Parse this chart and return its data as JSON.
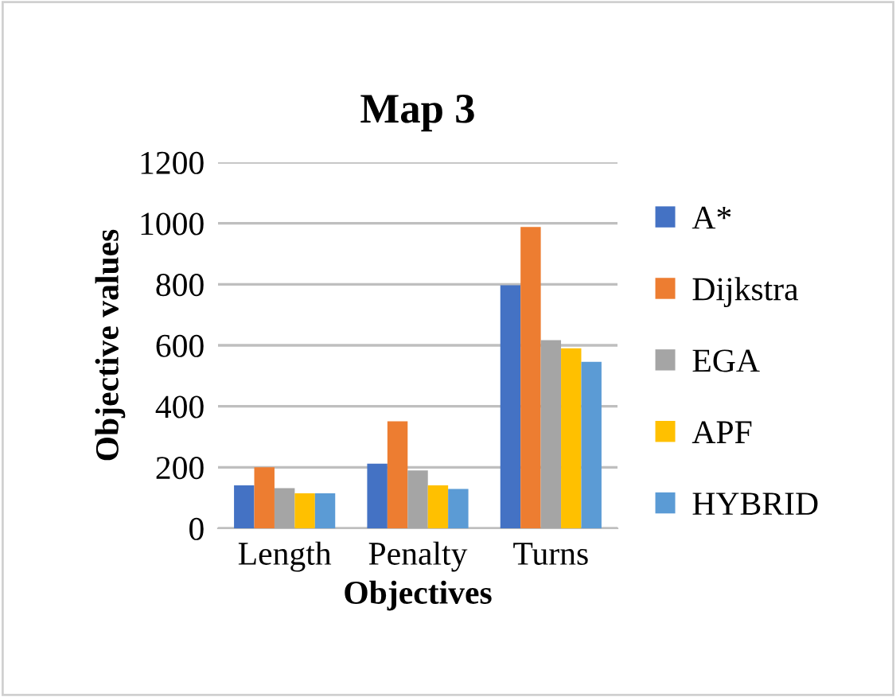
{
  "chart_data": {
    "type": "bar",
    "title": "Map 3",
    "xlabel": "Objectives",
    "ylabel": "Objective values",
    "categories": [
      "Length",
      "Penalty",
      "Turns"
    ],
    "series": [
      {
        "name": "A*",
        "color": "#4472c4",
        "values": [
          141,
          212,
          797
        ]
      },
      {
        "name": "Dijkstra",
        "color": "#ed7d31",
        "values": [
          200,
          351,
          988
        ]
      },
      {
        "name": "EGA",
        "color": "#a5a5a5",
        "values": [
          132,
          190,
          617
        ]
      },
      {
        "name": "APF",
        "color": "#ffc000",
        "values": [
          115,
          141,
          590
        ]
      },
      {
        "name": "HYBRID",
        "color": "#5b9bd5",
        "values": [
          115,
          129,
          546
        ]
      }
    ],
    "ylim": [
      0,
      1200
    ],
    "yticks": [
      0,
      200,
      400,
      600,
      800,
      1000,
      1200
    ],
    "grid": "y",
    "legend": "right"
  }
}
